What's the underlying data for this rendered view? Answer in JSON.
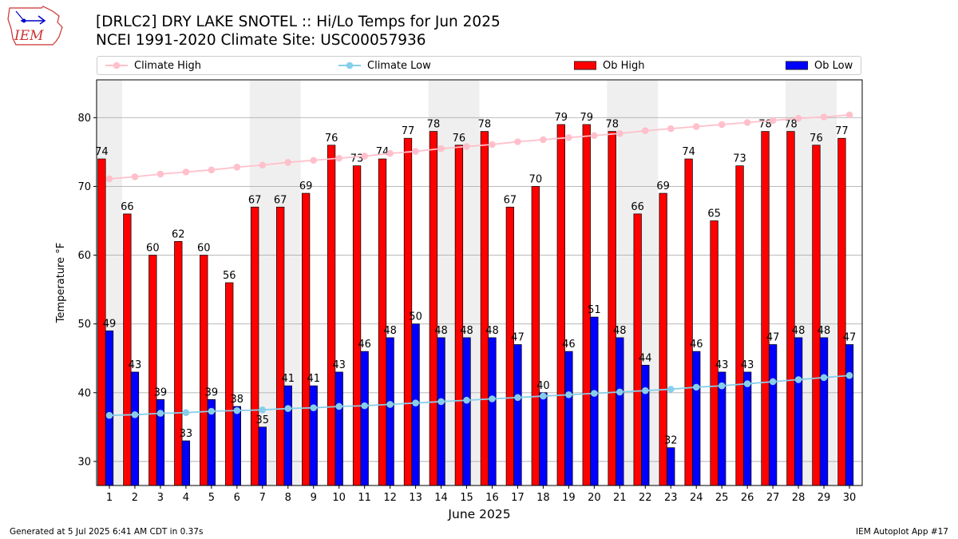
{
  "header": {
    "logo_text": "IEM",
    "title_line1": "[DRLC2] DRY LAKE SNOTEL :: Hi/Lo Temps for Jun 2025",
    "title_line2": "NCEI 1991-2020 Climate Site: USC00057936"
  },
  "legend": {
    "items": [
      {
        "label": "Climate High",
        "kind": "line",
        "color": "#ffc0cb"
      },
      {
        "label": "Climate Low",
        "kind": "line",
        "color": "#87ceeb"
      },
      {
        "label": "Ob High",
        "kind": "bar",
        "color": "#ff0000"
      },
      {
        "label": "Ob Low",
        "kind": "bar",
        "color": "#0000ff"
      }
    ],
    "placement": "top"
  },
  "chart_data": {
    "type": "bar",
    "xlabel": "June 2025",
    "ylabel": "Temperature °F",
    "ylim": [
      26.5,
      85.5
    ],
    "yticks": [
      30,
      40,
      50,
      60,
      70,
      80
    ],
    "grid": "horizontal",
    "categories": [
      "1",
      "2",
      "3",
      "4",
      "5",
      "6",
      "7",
      "8",
      "9",
      "10",
      "11",
      "12",
      "13",
      "14",
      "15",
      "16",
      "17",
      "18",
      "19",
      "20",
      "21",
      "22",
      "23",
      "24",
      "25",
      "26",
      "27",
      "28",
      "29",
      "30"
    ],
    "weekend_shading": [
      [
        1,
        1
      ],
      [
        7,
        8
      ],
      [
        14,
        15
      ],
      [
        21,
        22
      ],
      [
        28,
        29
      ]
    ],
    "series": [
      {
        "name": "Ob High",
        "kind": "bar",
        "color": "#ff0000",
        "values": [
          74,
          66,
          60,
          62,
          60,
          56,
          67,
          67,
          69,
          76,
          73,
          74,
          77,
          78,
          76,
          78,
          67,
          70,
          79,
          79,
          78,
          66,
          69,
          74,
          65,
          73,
          78,
          78,
          76,
          77
        ]
      },
      {
        "name": "Ob Low",
        "kind": "bar",
        "color": "#0000ff",
        "values": [
          49,
          43,
          39,
          33,
          39,
          38,
          35,
          41,
          41,
          43,
          46,
          48,
          50,
          48,
          48,
          48,
          47,
          40,
          46,
          51,
          48,
          44,
          32,
          46,
          43,
          43,
          47,
          48,
          48,
          47
        ]
      },
      {
        "name": "Climate High",
        "kind": "line",
        "color": "#ffc0cb",
        "values": [
          71.1,
          71.4,
          71.8,
          72.1,
          72.4,
          72.8,
          73.1,
          73.5,
          73.8,
          74.1,
          74.4,
          74.8,
          75.1,
          75.5,
          75.8,
          76.1,
          76.5,
          76.8,
          77.1,
          77.4,
          77.7,
          78.1,
          78.4,
          78.7,
          79.0,
          79.3,
          79.6,
          79.9,
          80.1,
          80.4
        ]
      },
      {
        "name": "Climate Low",
        "kind": "line",
        "color": "#87ceeb",
        "values": [
          36.7,
          36.8,
          37.0,
          37.1,
          37.3,
          37.4,
          37.5,
          37.7,
          37.8,
          38.0,
          38.1,
          38.3,
          38.5,
          38.7,
          38.9,
          39.1,
          39.3,
          39.5,
          39.7,
          39.9,
          40.1,
          40.3,
          40.5,
          40.8,
          41.0,
          41.3,
          41.6,
          41.9,
          42.2,
          42.5
        ]
      }
    ]
  },
  "footer": {
    "left": "Generated at 5 Jul 2025 6:41 AM CDT in 0.37s",
    "right": "IEM Autoplot App #17"
  }
}
